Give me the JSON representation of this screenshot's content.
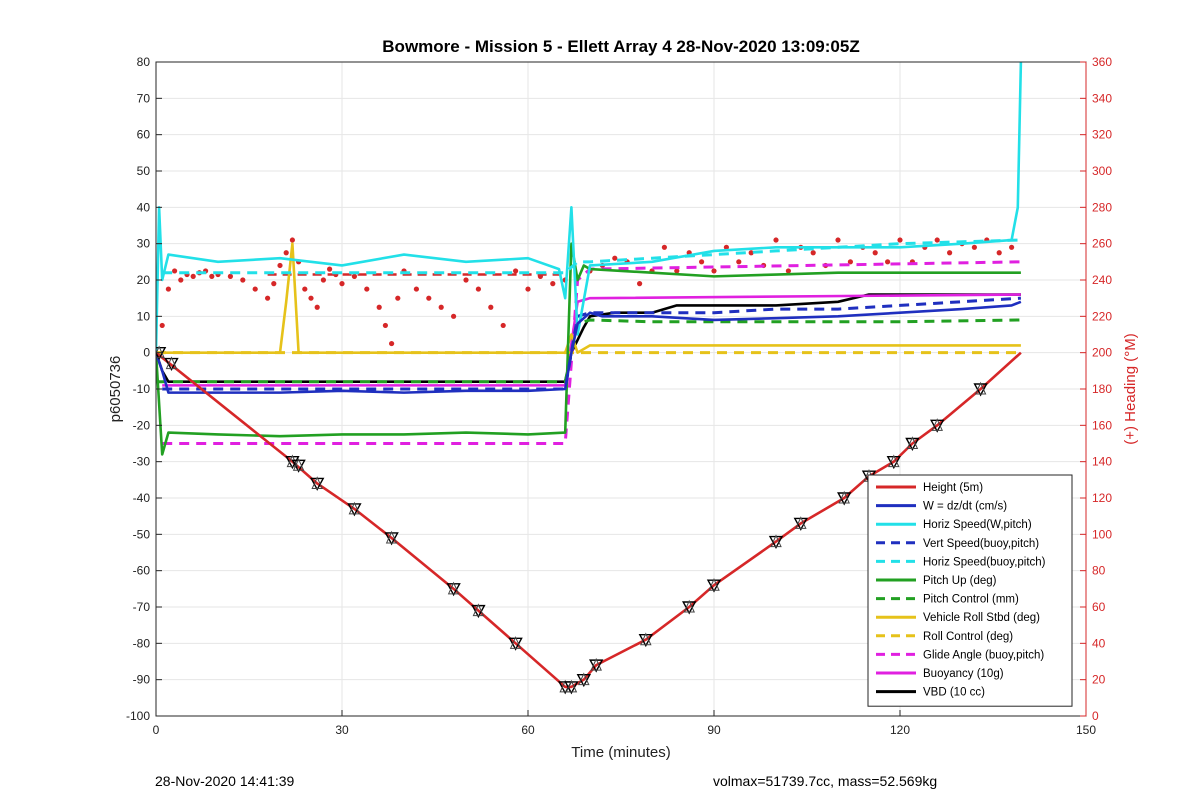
{
  "chart_data": {
    "type": "line",
    "title": "Bowmore - Mission 5 - Ellett Array 4 28-Nov-2020 13:09:05Z",
    "xlabel": "Time (minutes)",
    "ylabel": "p6050736",
    "y2label": "(+) Heading (°M)",
    "xlim": [
      0,
      150
    ],
    "ylim": [
      -100,
      80
    ],
    "y2lim": [
      0,
      360
    ],
    "xticks": [
      "0",
      "30",
      "60",
      "90",
      "120",
      "150"
    ],
    "yticks": [
      "80",
      "70",
      "60",
      "50",
      "40",
      "30",
      "20",
      "10",
      "0",
      "-10",
      "-20",
      "-30",
      "-40",
      "-50",
      "-60",
      "-70",
      "-80",
      "-90",
      "-100"
    ],
    "y2ticks": [
      "360",
      "340",
      "320",
      "300",
      "280",
      "260",
      "240",
      "220",
      "200",
      "180",
      "160",
      "140",
      "120",
      "100",
      "80",
      "60",
      "40",
      "20",
      "0"
    ],
    "grid": true,
    "legend_position": "bottom-right",
    "heading_color": "#d62728",
    "series": [
      {
        "name": "Height (5m)",
        "color": "#d62728",
        "style": "solid",
        "x": [
          0,
          22,
          26,
          32,
          38,
          48,
          52,
          58,
          66,
          67,
          69,
          71,
          79,
          86,
          90,
          100,
          104,
          111,
          115,
          119,
          122,
          126,
          133,
          139.5
        ],
        "y": [
          0,
          -30,
          -36,
          -43,
          -51,
          -65,
          -71,
          -80,
          -92,
          -92,
          -90,
          -86,
          -79,
          -70,
          -64,
          -52,
          -47,
          -40,
          -34,
          -30,
          -25,
          -20,
          -10,
          0
        ]
      },
      {
        "name": "W = dz/dt (cm/s)",
        "color": "#1f2fbf",
        "style": "solid",
        "x": [
          0,
          1,
          2,
          10,
          20,
          30,
          40,
          50,
          60,
          66,
          67,
          68,
          70,
          72,
          80,
          90,
          100,
          110,
          120,
          130,
          138,
          139.5
        ],
        "y": [
          0,
          -5,
          -11,
          -11,
          -11,
          -10.5,
          -11,
          -10.5,
          -10.5,
          -10,
          0,
          8,
          11,
          10,
          10,
          9,
          9.5,
          10,
          11,
          12,
          13,
          14
        ]
      },
      {
        "name": "Horiz Speed(W,pitch)",
        "color": "#22e0e8",
        "style": "solid",
        "x": [
          0,
          0.5,
          1,
          2,
          10,
          20,
          30,
          40,
          50,
          60,
          65,
          66,
          67,
          68,
          70,
          80,
          90,
          100,
          110,
          120,
          130,
          138,
          139,
          139.5
        ],
        "y": [
          0,
          40,
          20,
          27,
          25,
          26,
          24,
          27,
          25,
          26,
          23,
          15,
          40,
          5,
          24,
          25,
          28,
          29,
          29,
          29,
          30,
          31,
          40,
          80
        ]
      },
      {
        "name": "Vert Speed(buoy,pitch)",
        "color": "#1f2fbf",
        "style": "dashed",
        "x": [
          1,
          66,
          68,
          70,
          80,
          90,
          100,
          110,
          120,
          139.5
        ],
        "y": [
          -10,
          -10,
          10,
          11,
          11,
          11,
          12,
          12,
          13,
          15
        ]
      },
      {
        "name": "Horiz Speed(buoy,pitch)",
        "color": "#22e0e8",
        "style": "dashed",
        "x": [
          1,
          66,
          68,
          70,
          80,
          90,
          100,
          110,
          120,
          139.5
        ],
        "y": [
          22,
          22,
          25,
          25,
          26,
          27,
          28,
          29,
          30,
          31
        ]
      },
      {
        "name": "Pitch Up (deg)",
        "color": "#22a022",
        "style": "solid",
        "x": [
          0,
          1,
          2,
          10,
          20,
          30,
          40,
          50,
          60,
          66,
          67,
          68,
          69,
          70,
          80,
          90,
          100,
          110,
          120,
          130,
          139.5
        ],
        "y": [
          0,
          -28,
          -22,
          -22.5,
          -23,
          -22.5,
          -22.5,
          -22,
          -22.5,
          -22,
          30,
          20,
          24,
          23,
          22,
          21,
          21.5,
          22,
          22,
          22,
          22
        ]
      },
      {
        "name": "Pitch Control (mm)",
        "color": "#22a022",
        "style": "dashed",
        "x": [
          0,
          66,
          67,
          68,
          70,
          80,
          90,
          100,
          110,
          120,
          139.5
        ],
        "y": [
          -8,
          -8,
          0,
          8,
          9,
          8.5,
          8.5,
          8.5,
          8.5,
          8.5,
          9
        ]
      },
      {
        "name": "Vehicle Roll Stbd (deg)",
        "color": "#e6c21a",
        "style": "solid",
        "x": [
          0,
          10,
          20,
          21,
          22,
          23,
          30,
          40,
          50,
          60,
          66,
          67,
          68,
          70,
          80,
          90,
          100,
          110,
          120,
          130,
          139.5
        ],
        "y": [
          0,
          0,
          0,
          14,
          30,
          0,
          0,
          0,
          0,
          0,
          0,
          5,
          0,
          2,
          2,
          2,
          2,
          2,
          2,
          2,
          2
        ]
      },
      {
        "name": "Roll Control (deg)",
        "color": "#e6c21a",
        "style": "dashed",
        "x": [
          0,
          66,
          67,
          70,
          139.5
        ],
        "y": [
          0,
          0,
          0,
          0,
          0
        ]
      },
      {
        "name": "Glide Angle (buoy,pitch)",
        "color": "#e020e0",
        "style": "dashed",
        "x": [
          1,
          66,
          68,
          70,
          139.5
        ],
        "y": [
          -25,
          -25,
          20,
          23,
          25
        ]
      },
      {
        "name": "Buoyancy (10g)",
        "color": "#e020e0",
        "style": "solid",
        "x": [
          1,
          66,
          68,
          70,
          139.5
        ],
        "y": [
          -9,
          -9,
          14,
          15,
          16
        ]
      },
      {
        "name": "VBD (10 cc)",
        "color": "#000000",
        "style": "solid",
        "x": [
          0,
          1,
          2,
          10,
          20,
          30,
          40,
          50,
          60,
          66,
          67,
          69,
          70,
          74,
          80,
          84,
          90,
          100,
          110,
          115,
          120,
          139.5
        ],
        "y": [
          0,
          -5,
          -8,
          -8,
          -8,
          -8,
          -8,
          -8,
          -8,
          -8,
          0,
          7,
          10,
          11,
          11,
          13,
          13,
          13,
          14,
          16,
          16,
          16
        ]
      }
    ],
    "heading_scatter": {
      "color": "#d62728",
      "x": [
        1,
        2,
        3,
        4,
        5,
        6,
        7,
        8,
        9,
        10,
        12,
        14,
        16,
        18,
        19,
        20,
        21,
        22,
        23,
        24,
        25,
        26,
        27,
        28,
        29,
        30,
        32,
        34,
        36,
        37,
        38,
        39,
        40,
        42,
        44,
        46,
        48,
        50,
        52,
        54,
        56,
        58,
        60,
        62,
        64,
        66,
        70,
        72,
        74,
        76,
        78,
        80,
        82,
        84,
        86,
        88,
        90,
        92,
        94,
        96,
        98,
        100,
        102,
        104,
        106,
        108,
        110,
        112,
        114,
        116,
        118,
        120,
        122,
        124,
        126,
        128,
        130,
        132,
        134,
        136,
        138
      ],
      "y": [
        215,
        235,
        245,
        240,
        243,
        242,
        244,
        245,
        242,
        243,
        242,
        240,
        235,
        230,
        238,
        248,
        255,
        262,
        250,
        235,
        230,
        225,
        240,
        246,
        243,
        238,
        242,
        235,
        225,
        215,
        205,
        230,
        245,
        235,
        230,
        225,
        220,
        240,
        235,
        225,
        215,
        245,
        235,
        242,
        238,
        240,
        245,
        248,
        252,
        250,
        238,
        245,
        258,
        245,
        255,
        250,
        245,
        258,
        250,
        255,
        248,
        262,
        245,
        258,
        255,
        248,
        262,
        250,
        258,
        255,
        250,
        262,
        250,
        258,
        262,
        255,
        260,
        258,
        262,
        255,
        258
      ]
    },
    "heading_dashed": {
      "color": "#d62728",
      "x": [
        18,
        66
      ],
      "y": [
        243,
        243
      ]
    },
    "markers": {
      "x": [
        0.5,
        2.5,
        22,
        23,
        26,
        32,
        38,
        48,
        52,
        58,
        66,
        67,
        69,
        71,
        79,
        86,
        90,
        100,
        104,
        111,
        115,
        119,
        122,
        126,
        133
      ],
      "y": [
        0,
        -3,
        -30,
        -31,
        -36,
        -43,
        -51,
        -65,
        -71,
        -80,
        -92,
        -92,
        -90,
        -86,
        -79,
        -70,
        -64,
        -52,
        -47,
        -40,
        -34,
        -30,
        -25,
        -20,
        -10
      ]
    }
  },
  "footer": {
    "timestamp": "28-Nov-2020 14:41:39",
    "stats": "volmax=51739.7cc, mass=52.569kg"
  }
}
